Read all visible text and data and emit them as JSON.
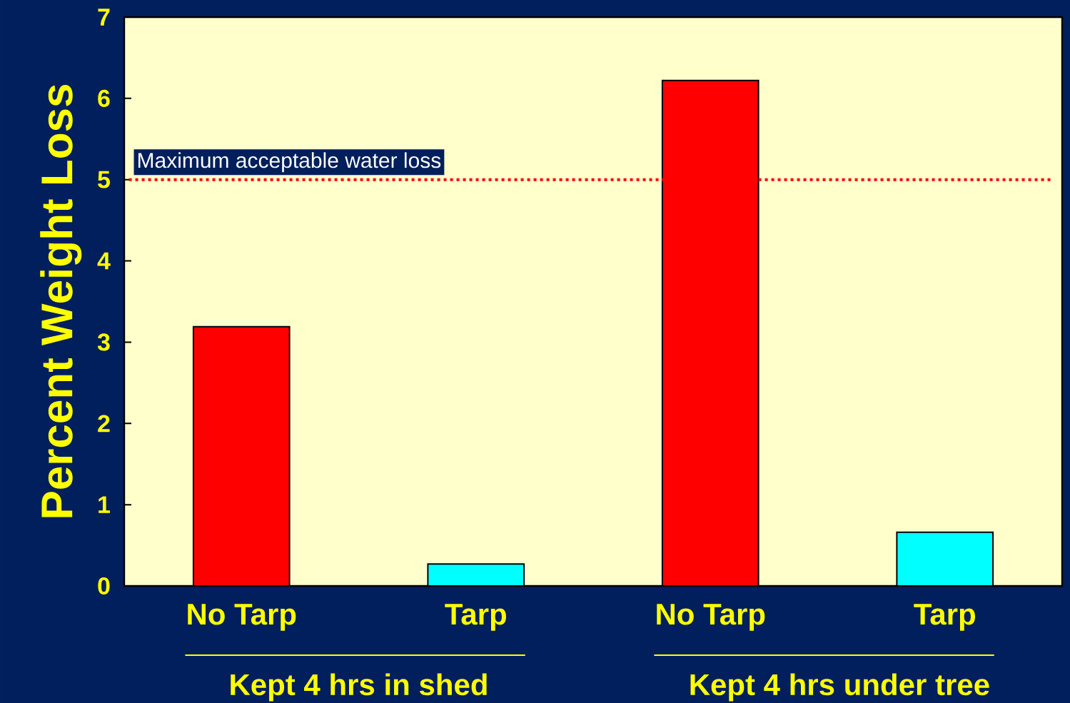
{
  "chart_data": {
    "type": "bar",
    "ylabel": "Percent Weight Loss",
    "categories": [
      "No Tarp",
      "Tarp",
      "No Tarp",
      "Tarp"
    ],
    "values": [
      3.19,
      0.27,
      6.22,
      0.66
    ],
    "colors": [
      "#ff0000",
      "#00ffff",
      "#ff0000",
      "#00ffff"
    ],
    "ylim": [
      0,
      7
    ],
    "yticks": [
      0,
      1,
      2,
      3,
      4,
      5,
      6,
      7
    ],
    "ref_lines": [
      {
        "axis": "y",
        "value": 5,
        "label": "Maximum acceptable water loss",
        "color": "#ff0000",
        "line_style": "dotted"
      }
    ],
    "annotations": [
      "Kept 4 hrs in shed",
      "Kept 4 hrs under tree"
    ],
    "grid": false
  }
}
